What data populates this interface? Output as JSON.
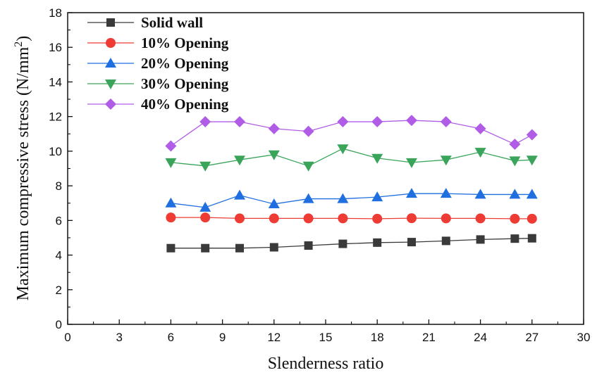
{
  "chart_data": {
    "type": "line",
    "title": "",
    "xlabel": "Slenderness ratio",
    "ylabel": "Maximum compressive stress (N/mm",
    "ylabel_sup": "2",
    "ylabel_close": ")",
    "xlim": [
      0,
      30
    ],
    "ylim": [
      0,
      18
    ],
    "xticks": [
      0,
      3,
      6,
      9,
      12,
      15,
      18,
      21,
      24,
      27,
      30
    ],
    "yticks": [
      0,
      2,
      4,
      6,
      8,
      10,
      12,
      14,
      16,
      18
    ],
    "grid": false,
    "legend_position": "top-left",
    "x": [
      6,
      8,
      10,
      12,
      14,
      16,
      18,
      20,
      22,
      24,
      26,
      27
    ],
    "series": [
      {
        "name": "Solid wall",
        "marker": "square",
        "color": "#3a3a3a",
        "values": [
          4.4,
          4.4,
          4.4,
          4.45,
          4.55,
          4.65,
          4.72,
          4.75,
          4.82,
          4.9,
          4.95,
          4.97
        ]
      },
      {
        "name": "10% Opening",
        "marker": "circle",
        "color": "#ee3b34",
        "values": [
          6.17,
          6.17,
          6.12,
          6.12,
          6.12,
          6.12,
          6.1,
          6.13,
          6.12,
          6.12,
          6.1,
          6.1
        ]
      },
      {
        "name": "20% Opening",
        "marker": "triangle-up",
        "color": "#1f6fe0",
        "values": [
          7.0,
          6.75,
          7.45,
          6.95,
          7.25,
          7.25,
          7.35,
          7.55,
          7.55,
          7.5,
          7.5,
          7.5
        ]
      },
      {
        "name": "30% Opening",
        "marker": "triangle-down",
        "color": "#3aa55a",
        "values": [
          9.35,
          9.15,
          9.5,
          9.8,
          9.15,
          10.15,
          9.6,
          9.35,
          9.5,
          9.95,
          9.45,
          9.5
        ]
      },
      {
        "name": "40% Opening",
        "marker": "diamond",
        "color": "#b05ce6",
        "values": [
          10.3,
          11.7,
          11.7,
          11.3,
          11.15,
          11.7,
          11.7,
          11.78,
          11.7,
          11.3,
          10.4,
          10.95
        ]
      }
    ]
  }
}
